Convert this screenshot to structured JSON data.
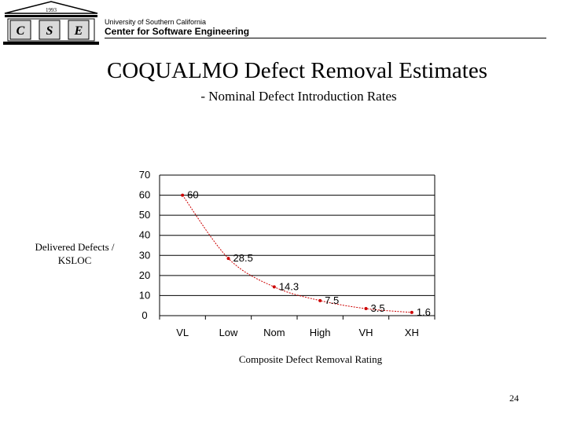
{
  "header": {
    "university": "University of Southern California",
    "center": "Center for Software  Engineering",
    "logo": {
      "letters": [
        "C",
        "S",
        "E"
      ],
      "year": "1993"
    }
  },
  "slide": {
    "title": "COQUALMO Defect Removal Estimates",
    "subtitle": "- Nominal Defect Introduction Rates",
    "page_number": "24"
  },
  "chart_data": {
    "type": "line",
    "title": "",
    "categories": [
      "VL",
      "Low",
      "Nom",
      "High",
      "VH",
      "XH"
    ],
    "series": [
      {
        "values": [
          60,
          28.5,
          14.3,
          7.5,
          3.5,
          1.6
        ],
        "color": "#cc0000",
        "smooth": true,
        "labels": [
          "60",
          "28.5",
          "14.3",
          "7.5",
          "3.5",
          "1.6"
        ]
      }
    ],
    "xlabel": "Composite Defect Removal Rating",
    "ylabel": "Delivered Defects / KSLOC",
    "ylim": [
      0,
      70
    ],
    "yticks": [
      0,
      10,
      20,
      30,
      40,
      50,
      60,
      70
    ],
    "grid": true
  }
}
